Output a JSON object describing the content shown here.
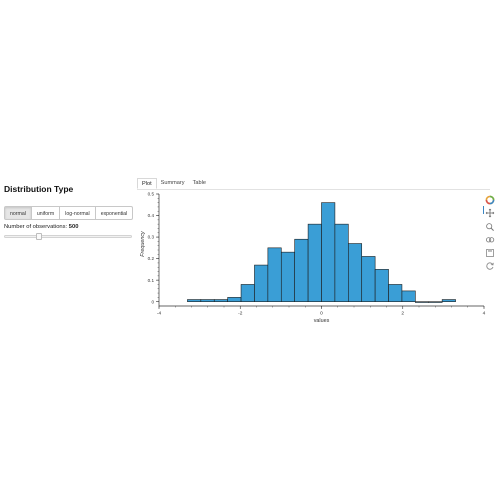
{
  "sidebar": {
    "title": "Distribution Type",
    "buttons": [
      {
        "label": "normal",
        "active": true
      },
      {
        "label": "uniform",
        "active": false
      },
      {
        "label": "log-normal",
        "active": false
      },
      {
        "label": "exponential",
        "active": false
      }
    ],
    "observations_label": "Number of observations: ",
    "observations_value": "500",
    "slider_fraction": 0.27
  },
  "tabs": [
    {
      "label": "Plot",
      "active": true
    },
    {
      "label": "Summary",
      "active": false
    },
    {
      "label": "Table",
      "active": false
    }
  ],
  "toolbar": {
    "icons": [
      "bokeh-logo-icon",
      "pan-icon",
      "wheel-zoom-icon",
      "box-zoom-icon",
      "save-icon",
      "reset-icon"
    ]
  },
  "colors": {
    "bar_fill": "#3a9ed6",
    "bar_stroke": "#1d1d1d",
    "accent": "#1f77b4"
  },
  "chart_data": {
    "type": "bar",
    "xlabel": "values",
    "ylabel": "Frequency",
    "xlim": [
      -4,
      4
    ],
    "ylim": [
      -0.02,
      0.5
    ],
    "xticks": [
      -4,
      -2,
      0,
      2,
      4
    ],
    "yticks": [
      0,
      0.1,
      0.2,
      0.3,
      0.4,
      0.5
    ],
    "yticklabels": [
      "0",
      "0.1",
      "0.2",
      "0.3",
      "0.4",
      "0.5"
    ],
    "bins": [
      {
        "x0": -3.3,
        "x1": -2.97,
        "y": 0.01
      },
      {
        "x0": -2.97,
        "x1": -2.64,
        "y": 0.01
      },
      {
        "x0": -2.64,
        "x1": -2.31,
        "y": 0.01
      },
      {
        "x0": -2.31,
        "x1": -1.98,
        "y": 0.02
      },
      {
        "x0": -1.98,
        "x1": -1.65,
        "y": 0.08
      },
      {
        "x0": -1.65,
        "x1": -1.32,
        "y": 0.17
      },
      {
        "x0": -1.32,
        "x1": -0.99,
        "y": 0.25
      },
      {
        "x0": -0.99,
        "x1": -0.66,
        "y": 0.23
      },
      {
        "x0": -0.66,
        "x1": -0.33,
        "y": 0.29
      },
      {
        "x0": -0.33,
        "x1": 0.0,
        "y": 0.36
      },
      {
        "x0": 0.0,
        "x1": 0.33,
        "y": 0.46
      },
      {
        "x0": 0.33,
        "x1": 0.66,
        "y": 0.36
      },
      {
        "x0": 0.66,
        "x1": 0.99,
        "y": 0.27
      },
      {
        "x0": 0.99,
        "x1": 1.32,
        "y": 0.21
      },
      {
        "x0": 1.32,
        "x1": 1.65,
        "y": 0.15
      },
      {
        "x0": 1.65,
        "x1": 1.98,
        "y": 0.08
      },
      {
        "x0": 1.98,
        "x1": 2.31,
        "y": 0.05
      },
      {
        "x0": 2.31,
        "x1": 2.64,
        "y": 0.0
      },
      {
        "x0": 2.64,
        "x1": 2.97,
        "y": 0.0
      },
      {
        "x0": 2.97,
        "x1": 3.3,
        "y": 0.01
      }
    ]
  }
}
